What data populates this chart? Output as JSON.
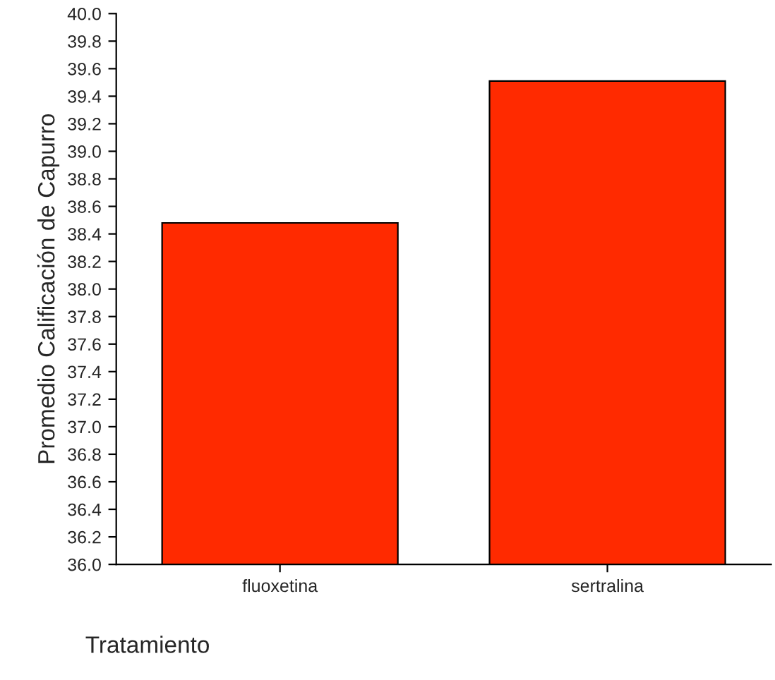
{
  "chart_data": {
    "type": "bar",
    "xlabel": "Tratamiento",
    "ylabel": "Promedio Calificación de Capurro",
    "categories": [
      "fluoxetina",
      "sertralina"
    ],
    "values": [
      38.48,
      39.51
    ],
    "color": "#ff2a00",
    "ylim": [
      36.0,
      40.0
    ],
    "yticks": [
      {
        "value": 36,
        "label": "36.0"
      },
      36.2,
      36.4,
      36.6,
      36.8,
      {
        "value": 37,
        "label": "37.0"
      },
      37.2,
      37.4,
      37.6,
      37.8,
      {
        "value": 38,
        "label": "38.0"
      },
      38.2,
      38.4,
      38.6,
      38.8,
      {
        "value": 39,
        "label": "39.0"
      },
      39.2,
      39.4,
      39.6,
      39.8,
      {
        "value": 40,
        "label": "40.0"
      }
    ],
    "grid": false,
    "legend": false
  }
}
